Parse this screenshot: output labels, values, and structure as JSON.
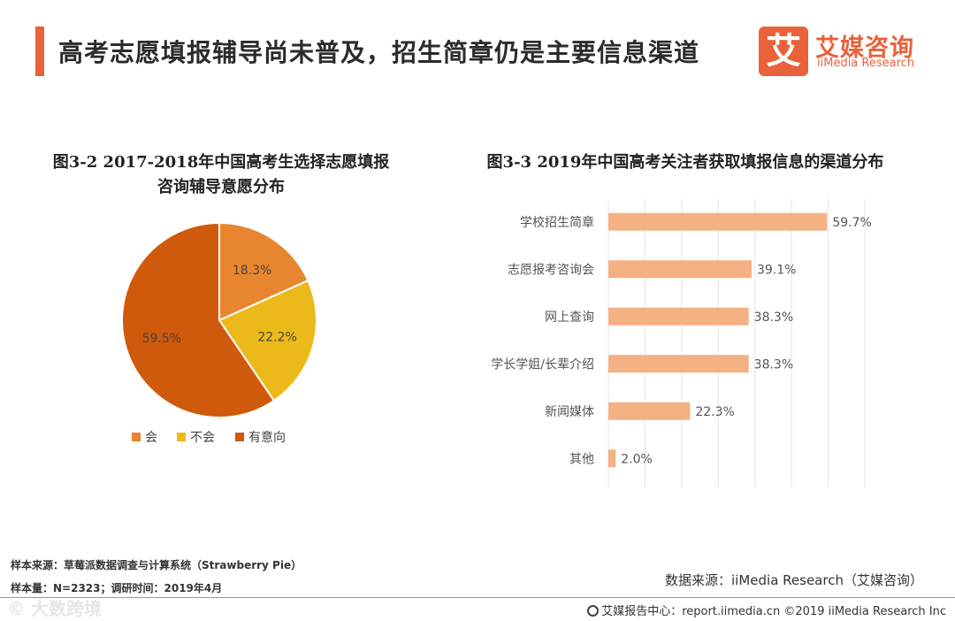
{
  "header": {
    "title": "高考志愿填报辅导尚未普及，招生简章仍是主要信息渠道",
    "logo_mark": "艾",
    "logo_cn": "艾媒咨询",
    "logo_en": "iiMedia Research"
  },
  "chart_data": [
    {
      "type": "pie",
      "title_line1": "图3-2 2017-2018年中国高考生选择志愿填报",
      "title_line2": "咨询辅导意愿分布",
      "categories": [
        "会",
        "不会",
        "有意向"
      ],
      "values": [
        18.3,
        22.2,
        59.5
      ],
      "labels": [
        "18.3%",
        "22.2%",
        "59.5%"
      ],
      "colors": [
        "#e8862f",
        "#ecb91a",
        "#cf5a0c"
      ],
      "legend_position": "bottom"
    },
    {
      "type": "bar",
      "orientation": "horizontal",
      "title": "图3-3 2019年中国高考关注者获取填报信息的渠道分布",
      "categories": [
        "学校招生简章",
        "志愿报考咨询会",
        "网上查询",
        "学长学姐/长辈介绍",
        "新闻媒体",
        "其他"
      ],
      "values": [
        59.7,
        39.1,
        38.3,
        38.3,
        22.3,
        2.0
      ],
      "labels": [
        "59.7%",
        "39.1%",
        "38.3%",
        "38.3%",
        "22.3%",
        "2.0%"
      ],
      "color": "#f4b183",
      "xlim": [
        0,
        70
      ],
      "grid": true
    }
  ],
  "footer": {
    "sample_source": "样本来源：草莓派数据调查与计算系统（Strawberry Pie）",
    "sample_size": "样本量：N=2323；调研时间：2019年4月",
    "data_source": "数据来源：iiMedia Research（艾媒咨询）",
    "watermark": "© 大数跨境",
    "copyright": "艾媒报告中心：report.iimedia.cn  ©2019  iiMedia Research Inc"
  }
}
